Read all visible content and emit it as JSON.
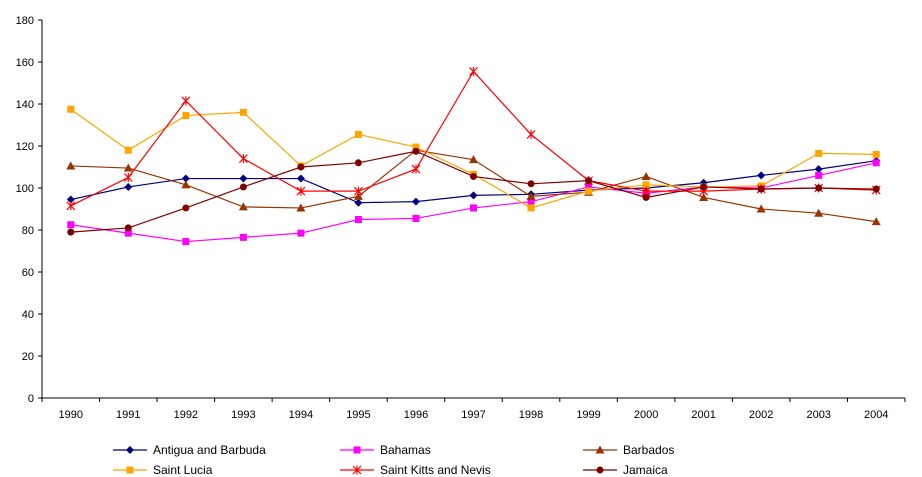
{
  "chart_data": {
    "type": "line",
    "title": "",
    "xlabel": "",
    "ylabel": "",
    "categories": [
      "1990",
      "1991",
      "1992",
      "1993",
      "1994",
      "1995",
      "1996",
      "1997",
      "1998",
      "1999",
      "2000",
      "2001",
      "2002",
      "2003",
      "2004"
    ],
    "ylim": [
      0,
      180
    ],
    "yticks": [
      0,
      20,
      40,
      60,
      80,
      100,
      120,
      140,
      160,
      180
    ],
    "grid": false,
    "legend_position": "bottom",
    "series": [
      {
        "name": "Antigua and Barbuda",
        "color": "#000080",
        "marker": "diamond",
        "values": [
          94.5,
          100.5,
          104.5,
          104.5,
          104.5,
          93,
          93.5,
          96.5,
          97,
          99,
          100,
          102.5,
          106,
          109,
          113
        ]
      },
      {
        "name": "Bahamas",
        "color": "#ff00ff",
        "marker": "square",
        "values": [
          82.5,
          78.5,
          74.5,
          76.5,
          78.5,
          85,
          85.5,
          90.5,
          93.5,
          100.5,
          97.5,
          100.5,
          100,
          106,
          112
        ]
      },
      {
        "name": "Barbados",
        "color": "#993300",
        "marker": "triangle",
        "values": [
          110.5,
          109.5,
          101.5,
          91,
          90.5,
          96,
          118,
          113.5,
          96,
          98,
          105.5,
          95.5,
          90,
          88,
          84
        ]
      },
      {
        "name": "Saint Lucia",
        "color": "#ffa500",
        "marker": "square",
        "values": [
          137.5,
          118,
          134.5,
          136,
          110.5,
          125.5,
          119.5,
          106.5,
          90.5,
          98.5,
          101.5,
          100.5,
          101,
          116.5,
          116
        ]
      },
      {
        "name": "Saint Kitts and Nevis",
        "color": "#ff0000",
        "marker": "star",
        "values": [
          91.5,
          105,
          141.5,
          114,
          98.5,
          98.5,
          109,
          155.5,
          125.5,
          103.5,
          98.5,
          98.5,
          99.5,
          100,
          99
        ]
      },
      {
        "name": "Jamaica",
        "color": "#800000",
        "marker": "circle",
        "values": [
          79,
          81,
          90.5,
          100.5,
          110,
          112,
          117.5,
          105.5,
          102,
          103.5,
          95.5,
          100.5,
          99.5,
          100,
          99.5
        ]
      }
    ]
  }
}
